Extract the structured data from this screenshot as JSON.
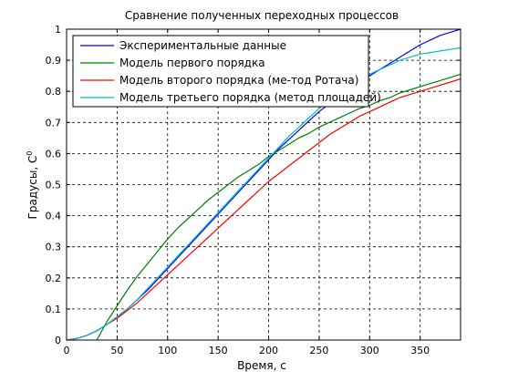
{
  "chart_data": {
    "type": "line",
    "title": "Сравнение полученных переходных процессов",
    "xlabel": "Время, с",
    "ylabel": "Градусы, С",
    "ylabel_superscript": "0",
    "xlim": [
      0,
      390
    ],
    "ylim": [
      0,
      1
    ],
    "xticks": [
      0,
      50,
      100,
      150,
      200,
      250,
      300,
      350
    ],
    "yticks": [
      0,
      0.1,
      0.2,
      0.3,
      0.4,
      0.5,
      0.6,
      0.7,
      0.8,
      0.9,
      1
    ],
    "grid": true,
    "legend_position": "top-left",
    "series": [
      {
        "name": "Экспериментальные данные",
        "color": "#0000ff",
        "x": [
          0,
          10,
          20,
          30,
          40,
          50,
          60,
          70,
          80,
          90,
          100,
          110,
          120,
          130,
          140,
          150,
          160,
          170,
          180,
          190,
          200,
          210,
          220,
          230,
          240,
          250,
          260,
          270,
          280,
          290,
          300,
          310,
          320,
          330,
          340,
          350,
          360,
          370,
          380,
          390
        ],
        "y": [
          0,
          0.005,
          0.015,
          0.03,
          0.05,
          0.075,
          0.1,
          0.13,
          0.16,
          0.195,
          0.23,
          0.265,
          0.3,
          0.335,
          0.37,
          0.405,
          0.44,
          0.475,
          0.51,
          0.545,
          0.58,
          0.615,
          0.645,
          0.675,
          0.705,
          0.735,
          0.76,
          0.785,
          0.81,
          0.83,
          0.85,
          0.87,
          0.89,
          0.91,
          0.93,
          0.95,
          0.965,
          0.98,
          0.99,
          1.0
        ]
      },
      {
        "name": "Модель первого порядка",
        "color": "#008000",
        "x": [
          30,
          40,
          50,
          60,
          70,
          80,
          90,
          100,
          110,
          120,
          130,
          140,
          150,
          160,
          170,
          180,
          190,
          200,
          210,
          220,
          230,
          240,
          250,
          260,
          270,
          280,
          290,
          300,
          310,
          320,
          330,
          340,
          350,
          360,
          370,
          380,
          390
        ],
        "y": [
          0,
          0.06,
          0.11,
          0.16,
          0.205,
          0.245,
          0.285,
          0.325,
          0.36,
          0.39,
          0.42,
          0.45,
          0.475,
          0.5,
          0.525,
          0.545,
          0.565,
          0.59,
          0.61,
          0.63,
          0.65,
          0.665,
          0.685,
          0.7,
          0.715,
          0.73,
          0.745,
          0.755,
          0.77,
          0.78,
          0.795,
          0.805,
          0.815,
          0.825,
          0.835,
          0.845,
          0.855
        ]
      },
      {
        "name": "Модель второго порядка (ме-тод Ротача)",
        "color": "#ff0000",
        "x": [
          0,
          10,
          20,
          30,
          40,
          50,
          60,
          70,
          80,
          90,
          100,
          110,
          120,
          130,
          140,
          150,
          160,
          170,
          180,
          190,
          200,
          210,
          220,
          230,
          240,
          250,
          260,
          270,
          280,
          290,
          300,
          310,
          320,
          330,
          340,
          350,
          360,
          370,
          380,
          390
        ],
        "y": [
          0,
          0.005,
          0.015,
          0.03,
          0.05,
          0.07,
          0.095,
          0.12,
          0.15,
          0.18,
          0.21,
          0.24,
          0.27,
          0.3,
          0.33,
          0.36,
          0.39,
          0.42,
          0.45,
          0.48,
          0.51,
          0.535,
          0.56,
          0.585,
          0.61,
          0.635,
          0.66,
          0.68,
          0.7,
          0.72,
          0.735,
          0.75,
          0.765,
          0.78,
          0.79,
          0.8,
          0.81,
          0.82,
          0.83,
          0.84
        ]
      },
      {
        "name": "Модель третьего порядка (метод площадей)",
        "color": "#00bfbf",
        "x": [
          0,
          10,
          20,
          30,
          40,
          50,
          60,
          70,
          80,
          90,
          100,
          110,
          120,
          130,
          140,
          150,
          160,
          170,
          180,
          190,
          200,
          210,
          220,
          230,
          240,
          250,
          260,
          270,
          280,
          290,
          300,
          310,
          320,
          330,
          340,
          350,
          360,
          370,
          380,
          390
        ],
        "y": [
          0,
          0.005,
          0.015,
          0.03,
          0.05,
          0.075,
          0.1,
          0.13,
          0.165,
          0.2,
          0.235,
          0.27,
          0.305,
          0.34,
          0.375,
          0.41,
          0.445,
          0.48,
          0.515,
          0.55,
          0.585,
          0.62,
          0.655,
          0.685,
          0.715,
          0.745,
          0.77,
          0.795,
          0.815,
          0.835,
          0.855,
          0.87,
          0.885,
          0.9,
          0.91,
          0.92,
          0.925,
          0.93,
          0.935,
          0.94
        ]
      }
    ]
  }
}
